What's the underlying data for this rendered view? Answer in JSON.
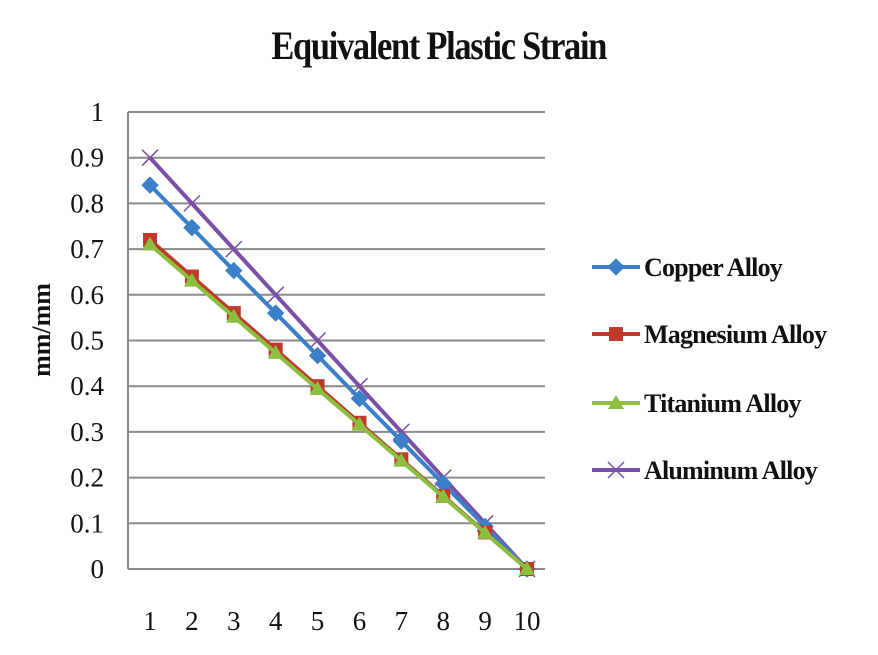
{
  "chart_data": {
    "type": "line",
    "title": "Equivalent Plastic Strain",
    "xlabel": "",
    "ylabel": "mm/mm",
    "x": [
      1,
      2,
      3,
      4,
      5,
      6,
      7,
      8,
      9,
      10
    ],
    "x_tick_labels": [
      "1",
      "2",
      "3",
      "4",
      "5",
      "6",
      "7",
      "8",
      "9",
      "10"
    ],
    "y_tick_labels": [
      "0",
      "0.1",
      "0.2",
      "0.3",
      "0.4",
      "0.5",
      "0.6",
      "0.7",
      "0.8",
      "0.9",
      "1"
    ],
    "ylim": [
      0,
      1
    ],
    "grid": "horizontal",
    "legend_position": "right",
    "series": [
      {
        "name": "Copper Alloy",
        "color": "#3a7fc8",
        "marker": "diamond",
        "values": [
          0.84,
          0.747,
          0.653,
          0.56,
          0.467,
          0.373,
          0.28,
          0.187,
          0.093,
          0
        ]
      },
      {
        "name": "Magnesium Alloy",
        "color": "#c0392b",
        "marker": "square",
        "values": [
          0.72,
          0.64,
          0.56,
          0.48,
          0.4,
          0.32,
          0.24,
          0.16,
          0.08,
          0
        ]
      },
      {
        "name": "Titanium Alloy",
        "color": "#8cbf3f",
        "marker": "triangle",
        "values": [
          0.71,
          0.631,
          0.552,
          0.473,
          0.394,
          0.316,
          0.237,
          0.158,
          0.079,
          0
        ]
      },
      {
        "name": "Aluminum Alloy",
        "color": "#7b4fa6",
        "marker": "x",
        "values": [
          0.9,
          0.8,
          0.7,
          0.6,
          0.5,
          0.4,
          0.3,
          0.2,
          0.1,
          0
        ]
      }
    ]
  }
}
